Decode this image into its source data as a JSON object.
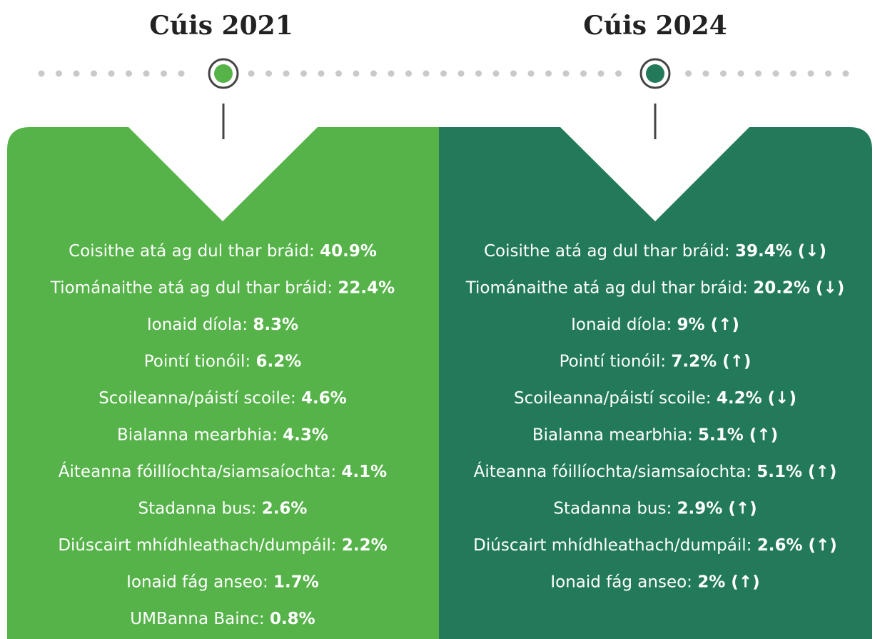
{
  "columns": [
    {
      "title": "Cúis 2021",
      "items": [
        {
          "label": "Coisithe atá ag dul thar bráid:",
          "value": "40.9%"
        },
        {
          "label": "Tiománaithe atá ag dul thar bráid:",
          "value": "22.4%"
        },
        {
          "label": "Ionaid díola:",
          "value": "8.3%"
        },
        {
          "label": "Pointí tionóil:",
          "value": "6.2%"
        },
        {
          "label": "Scoileanna/páistí scoile:",
          "value": "4.6%"
        },
        {
          "label": "Bialanna mearbhia:",
          "value": "4.3%"
        },
        {
          "label": "Áiteanna fóillíochta/siamsaíochta:",
          "value": "4.1%"
        },
        {
          "label": "Stadanna bus:",
          "value": "2.6%"
        },
        {
          "label": "Diúscairt mhídhleathach/dumpáil:",
          "value": "2.2%"
        },
        {
          "label": "Ionaid fág anseo:",
          "value": "1.7%"
        },
        {
          "label": "UMBanna Bainc:",
          "value": "0.8%"
        }
      ]
    },
    {
      "title": "Cúis 2024",
      "items": [
        {
          "label": "Coisithe atá ag dul thar bráid:",
          "value": "39.4% (↓)"
        },
        {
          "label": "Tiománaithe atá ag dul thar bráid:",
          "value": "20.2% (↓)"
        },
        {
          "label": "Ionaid díola:",
          "value": "9% (↑)"
        },
        {
          "label": "Pointí tionóil:",
          "value": "7.2% (↑)"
        },
        {
          "label": "Scoileanna/páistí scoile:",
          "value": "4.2% (↓)"
        },
        {
          "label": "Bialanna mearbhia:",
          "value": "5.1% (↑)"
        },
        {
          "label": "Áiteanna fóillíochta/siamsaíochta:",
          "value": "5.1% (↑)"
        },
        {
          "label": "Stadanna bus:",
          "value": "2.9% (↑)"
        },
        {
          "label": "Diúscairt mhídhleathach/dumpáil:",
          "value": "2.6% (↑)"
        },
        {
          "label": "Ionaid fág anseo:",
          "value": "2% (↑)"
        }
      ]
    }
  ]
}
